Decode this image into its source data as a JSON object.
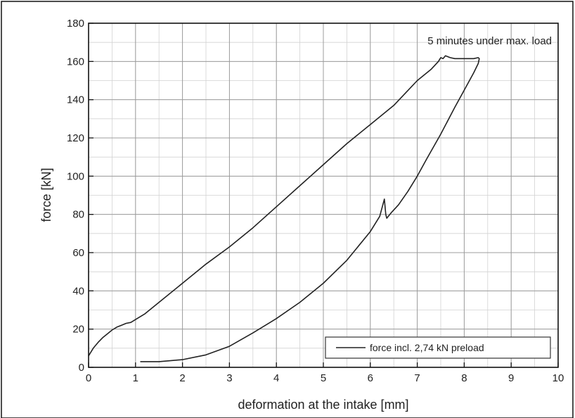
{
  "chart_data": {
    "type": "line",
    "title": "",
    "xlabel": "deformation at the intake [mm]",
    "ylabel": "force [kN]",
    "xlim": [
      0,
      10
    ],
    "ylim": [
      0,
      180
    ],
    "xticks": [
      0,
      1,
      2,
      3,
      4,
      5,
      6,
      7,
      8,
      9,
      10
    ],
    "yticks": [
      0,
      20,
      40,
      60,
      80,
      100,
      120,
      140,
      160,
      180
    ],
    "x_minor_step": 0.5,
    "y_minor_step": 10,
    "grid": true,
    "legend_position": "bottom-right",
    "annotation": "5 minutes under max. load",
    "line_color": "#222222",
    "series": [
      {
        "name": "force incl. 2,74 kN preload",
        "x": [
          0,
          0.1,
          0.2,
          0.3,
          0.4,
          0.5,
          0.6,
          0.7,
          0.8,
          0.9,
          1.0,
          1.2,
          1.5,
          2.0,
          2.5,
          3.0,
          3.5,
          4.0,
          4.5,
          5.0,
          5.5,
          6.0,
          6.5,
          7.0,
          7.3,
          7.45,
          7.5,
          7.55,
          7.6,
          7.7,
          7.8,
          8.0,
          8.2,
          8.3,
          8.32,
          8.3,
          8.2,
          8.0,
          7.8,
          7.5,
          7.2,
          7.0,
          6.8,
          6.6,
          6.45,
          6.35,
          6.33,
          6.3,
          6.2,
          6.0,
          5.5,
          5.0,
          4.5,
          4.0,
          3.5,
          3.0,
          2.5,
          2.0,
          1.5,
          1.1
        ],
        "y": [
          6,
          10,
          13,
          15.5,
          17.5,
          19.5,
          21,
          22,
          23,
          23.5,
          25,
          28,
          34,
          44,
          54,
          63,
          73,
          84,
          95,
          106,
          117,
          127,
          137,
          150,
          156,
          160,
          162,
          161.5,
          163,
          162,
          161.5,
          161.5,
          161.5,
          162,
          161.5,
          159,
          154,
          145,
          136,
          122,
          109,
          100,
          92,
          85,
          81,
          78,
          80,
          88,
          79,
          71,
          56,
          44,
          34,
          25.5,
          18,
          11,
          6.5,
          4,
          3,
          3
        ]
      }
    ]
  }
}
